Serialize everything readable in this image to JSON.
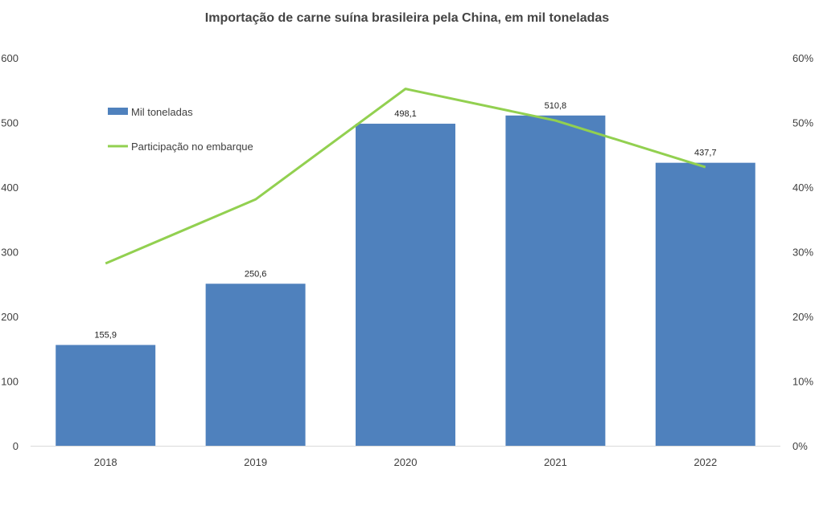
{
  "chart_data": {
    "type": "bar",
    "title": "Importação de carne suína brasileira pela China, em mil toneladas",
    "categories": [
      "2018",
      "2019",
      "2020",
      "2021",
      "2022"
    ],
    "series": [
      {
        "name": "Mil toneladas",
        "type": "bar",
        "axis": "left",
        "color": "#4f81bd",
        "values": [
          155.9,
          250.6,
          498.1,
          510.8,
          437.7
        ],
        "labels": [
          "155,9",
          "250,6",
          "498,1",
          "510,8",
          "437,7"
        ]
      },
      {
        "name": "Participação no embarque",
        "type": "line",
        "axis": "right",
        "color": "#92d050",
        "values": [
          28.2,
          38.1,
          55.2,
          50.3,
          43.1
        ]
      }
    ],
    "y_left": {
      "min": 0,
      "max": 600,
      "ticks": [
        "0",
        "100",
        "200",
        "300",
        "400",
        "500",
        "600"
      ]
    },
    "y_right": {
      "min": 0,
      "max": 60,
      "ticks": [
        "0%",
        "10%",
        "20%",
        "30%",
        "40%",
        "50%",
        "60%"
      ]
    },
    "legend": {
      "position": "top-left",
      "items": [
        "Mil toneladas",
        "Participação no embarque"
      ]
    },
    "grid": false
  }
}
